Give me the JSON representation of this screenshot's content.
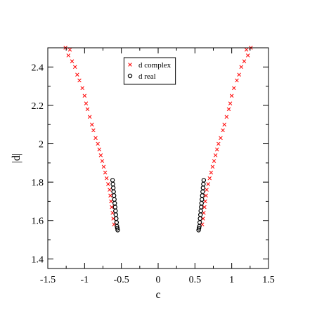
{
  "chart_data": {
    "type": "scatter",
    "title": "",
    "xlabel": "c",
    "ylabel": "|d|",
    "xlim": [
      -1.5,
      1.5
    ],
    "ylim": [
      1.35,
      2.5
    ],
    "x_ticks": [
      -1.5,
      -1,
      -0.5,
      0,
      0.5,
      1,
      1.5
    ],
    "x_tick_labels": [
      "-1.5",
      "-1",
      "-0.5",
      "0",
      "0.5",
      "1",
      "1.5"
    ],
    "y_ticks": [
      1.4,
      1.6,
      1.8,
      2,
      2.2,
      2.4
    ],
    "y_tick_labels": [
      "1.4",
      "1.6",
      "1.8",
      "2",
      "2.2",
      "2.4"
    ],
    "grid": false,
    "legend_position": "top-center",
    "series": [
      {
        "name": "d complex",
        "marker": "x",
        "color": "#ff0000",
        "points": [
          [
            -1.26,
            2.5
          ],
          [
            -1.22,
            2.46
          ],
          [
            -1.2,
            2.49
          ],
          [
            -1.17,
            2.43
          ],
          [
            -1.13,
            2.4
          ],
          [
            -1.1,
            2.36
          ],
          [
            -1.07,
            2.33
          ],
          [
            -1.03,
            2.29
          ],
          [
            -1.0,
            2.25
          ],
          [
            -0.98,
            2.21
          ],
          [
            -0.96,
            2.18
          ],
          [
            -0.93,
            2.14
          ],
          [
            -0.9,
            2.1
          ],
          [
            -0.88,
            2.07
          ],
          [
            -0.85,
            2.03
          ],
          [
            -0.82,
            2.0
          ],
          [
            -0.8,
            1.97
          ],
          [
            -0.78,
            1.94
          ],
          [
            -0.76,
            1.91
          ],
          [
            -0.74,
            1.88
          ],
          [
            -0.72,
            1.85
          ],
          [
            -0.7,
            1.82
          ],
          [
            -0.68,
            1.79
          ],
          [
            -0.66,
            1.76
          ],
          [
            -0.65,
            1.73
          ],
          [
            -0.64,
            1.7
          ],
          [
            -0.63,
            1.67
          ],
          [
            -0.62,
            1.64
          ],
          [
            -0.61,
            1.61
          ],
          [
            -0.6,
            1.58
          ],
          [
            1.26,
            2.5
          ],
          [
            1.22,
            2.46
          ],
          [
            1.2,
            2.49
          ],
          [
            1.17,
            2.43
          ],
          [
            1.13,
            2.4
          ],
          [
            1.1,
            2.36
          ],
          [
            1.07,
            2.33
          ],
          [
            1.03,
            2.29
          ],
          [
            1.0,
            2.25
          ],
          [
            0.98,
            2.21
          ],
          [
            0.96,
            2.18
          ],
          [
            0.93,
            2.14
          ],
          [
            0.9,
            2.1
          ],
          [
            0.88,
            2.07
          ],
          [
            0.85,
            2.03
          ],
          [
            0.82,
            2.0
          ],
          [
            0.8,
            1.97
          ],
          [
            0.78,
            1.94
          ],
          [
            0.76,
            1.91
          ],
          [
            0.74,
            1.88
          ],
          [
            0.72,
            1.85
          ],
          [
            0.7,
            1.82
          ],
          [
            0.68,
            1.79
          ],
          [
            0.66,
            1.76
          ],
          [
            0.65,
            1.73
          ],
          [
            0.64,
            1.7
          ],
          [
            0.63,
            1.67
          ],
          [
            0.62,
            1.64
          ],
          [
            0.61,
            1.61
          ],
          [
            0.6,
            1.58
          ]
        ]
      },
      {
        "name": "d real",
        "marker": "o",
        "color": "#000000",
        "points": [
          [
            -0.62,
            1.81
          ],
          [
            -0.615,
            1.79
          ],
          [
            -0.61,
            1.77
          ],
          [
            -0.605,
            1.75
          ],
          [
            -0.6,
            1.73
          ],
          [
            -0.595,
            1.71
          ],
          [
            -0.59,
            1.69
          ],
          [
            -0.585,
            1.67
          ],
          [
            -0.58,
            1.65
          ],
          [
            -0.575,
            1.63
          ],
          [
            -0.57,
            1.61
          ],
          [
            -0.565,
            1.59
          ],
          [
            -0.56,
            1.57
          ],
          [
            -0.555,
            1.56
          ],
          [
            -0.55,
            1.55
          ],
          [
            0.62,
            1.81
          ],
          [
            0.615,
            1.79
          ],
          [
            0.61,
            1.77
          ],
          [
            0.605,
            1.75
          ],
          [
            0.6,
            1.73
          ],
          [
            0.595,
            1.71
          ],
          [
            0.59,
            1.69
          ],
          [
            0.585,
            1.67
          ],
          [
            0.58,
            1.65
          ],
          [
            0.575,
            1.63
          ],
          [
            0.57,
            1.61
          ],
          [
            0.565,
            1.59
          ],
          [
            0.56,
            1.57
          ],
          [
            0.555,
            1.56
          ],
          [
            0.55,
            1.55
          ]
        ]
      }
    ]
  }
}
